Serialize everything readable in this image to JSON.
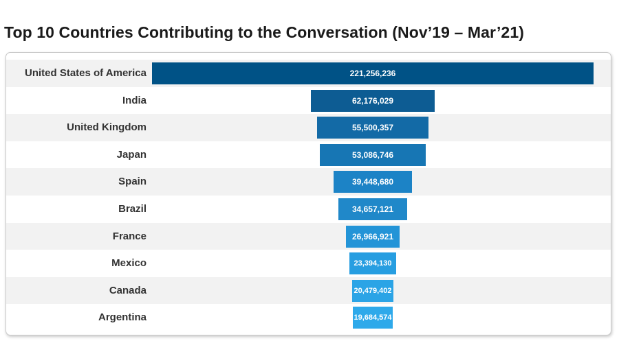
{
  "title": "Top 10 Countries Contributing to the Conversation (Nov’19 – Mar’21)",
  "chart_data": {
    "type": "bar",
    "orientation": "horizontal",
    "layout": "centered-funnel",
    "title": "Top 10 Countries Contributing to the Conversation (Nov’19 – Mar’21)",
    "categories": [
      "United States of America",
      "India",
      "United Kingdom",
      "Japan",
      "Spain",
      "Brazil",
      "France",
      "Mexico",
      "Canada",
      "Argentina"
    ],
    "values": [
      221256236,
      62176029,
      55500357,
      53086746,
      39448680,
      34657121,
      26966921,
      23394130,
      20479402,
      19684574
    ],
    "value_labels": [
      "221,256,236",
      "62,176,029",
      "55,500,357",
      "53,086,746",
      "39,448,680",
      "34,657,121",
      "26,966,921",
      "23,394,130",
      "20,479,402",
      "19,684,574"
    ],
    "colors": [
      "#005286",
      "#0d5c93",
      "#136aa6",
      "#1776b4",
      "#1c83c6",
      "#2088c9",
      "#2394d7",
      "#279ee1",
      "#2ba4e6",
      "#2ea9ea"
    ],
    "grid": false,
    "legend": "none"
  }
}
